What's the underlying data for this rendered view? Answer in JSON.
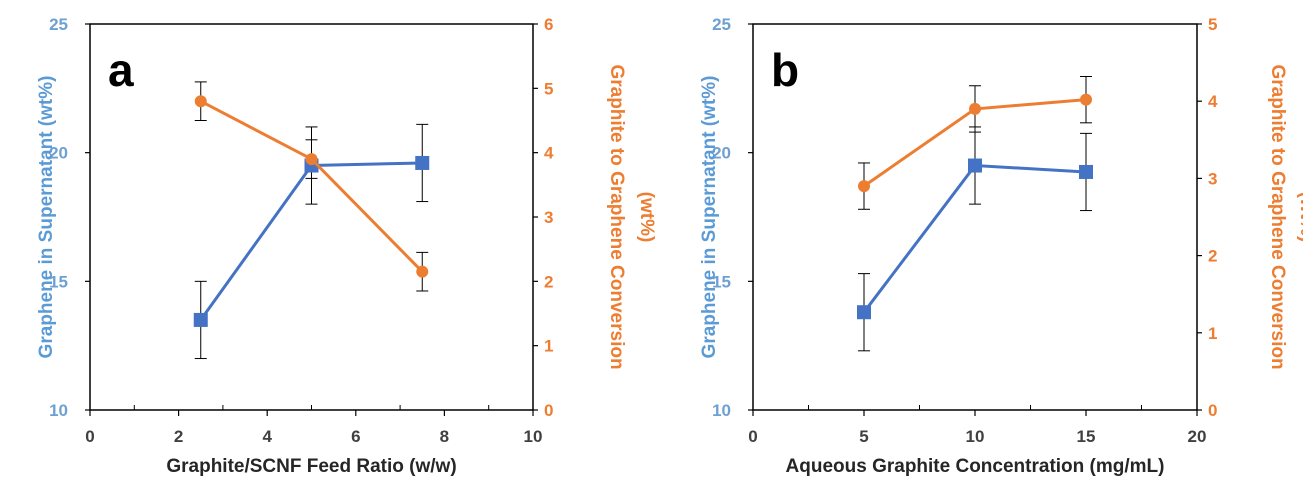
{
  "colors": {
    "blue_series": "#4472c4",
    "orange_series": "#ed7d31",
    "left_axis_text": "#5b9bd5",
    "right_axis_text": "#ed7d31"
  },
  "chart_data": [
    {
      "type": "line",
      "panel_label": "a",
      "xlabel": "Graphite/SCNF Feed Ratio (w/w)",
      "ylabel": "Graphene in Supernatant (wt%)",
      "y2label_lines": [
        "Graphite to Graphene Conversion",
        "(wt%)"
      ],
      "xlim": [
        0,
        10
      ],
      "x_ticks": [
        0,
        2,
        4,
        6,
        8,
        10
      ],
      "ylim": [
        10,
        25
      ],
      "y_ticks": [
        10,
        15,
        20,
        25
      ],
      "y2lim": [
        0,
        6
      ],
      "y2_ticks": [
        0,
        1,
        2,
        3,
        4,
        5,
        6
      ],
      "grid": false,
      "series": [
        {
          "axis": "left",
          "marker": "square",
          "color": "#4472c4",
          "x": [
            2.5,
            5,
            7.5
          ],
          "y": [
            13.5,
            19.5,
            19.6
          ],
          "err": [
            1.5,
            1.5,
            1.5
          ]
        },
        {
          "axis": "right",
          "marker": "circle",
          "color": "#ed7d31",
          "x": [
            2.5,
            5,
            7.5
          ],
          "y": [
            4.8,
            3.9,
            2.15
          ],
          "err": [
            0.3,
            0.3,
            0.3
          ]
        }
      ]
    },
    {
      "type": "line",
      "panel_label": "b",
      "xlabel": "Aqueous Graphite Concentration (mg/mL)",
      "ylabel": "Graphene in Supernatant (wt%)",
      "y2label_lines": [
        "Graphite to Graphene Conversion",
        "(wt%)"
      ],
      "xlim": [
        0,
        20
      ],
      "x_ticks": [
        0,
        5,
        10,
        15,
        20
      ],
      "ylim": [
        10,
        25
      ],
      "y_ticks": [
        10,
        15,
        20,
        25
      ],
      "y2lim": [
        0,
        5
      ],
      "y2_ticks": [
        0,
        1,
        2,
        3,
        4,
        5
      ],
      "grid": false,
      "series": [
        {
          "axis": "left",
          "marker": "square",
          "color": "#4472c4",
          "x": [
            5,
            10,
            15
          ],
          "y": [
            13.8,
            19.5,
            19.25
          ],
          "err": [
            1.5,
            1.5,
            1.5
          ]
        },
        {
          "axis": "right",
          "marker": "circle",
          "color": "#ed7d31",
          "x": [
            5,
            10,
            15
          ],
          "y": [
            2.9,
            3.9,
            4.02
          ],
          "err": [
            0.3,
            0.3,
            0.3
          ]
        }
      ]
    }
  ]
}
